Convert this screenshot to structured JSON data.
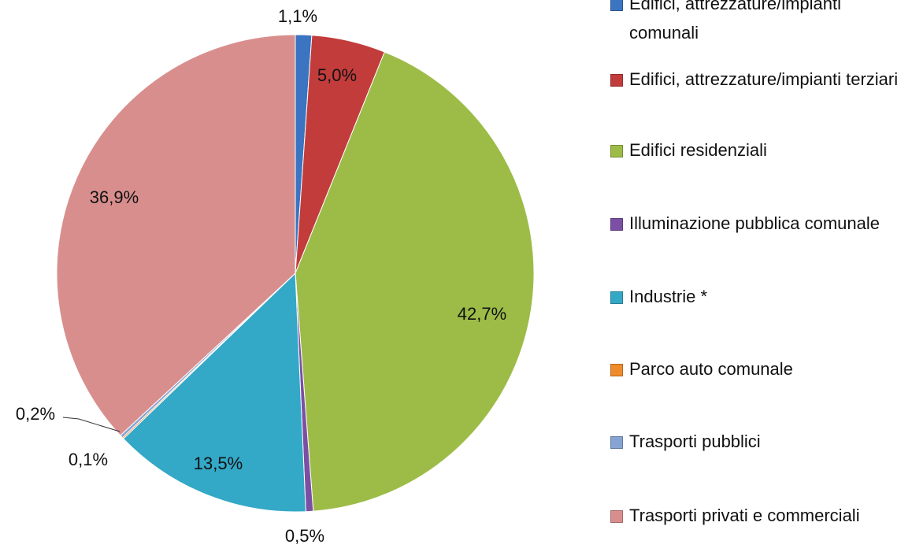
{
  "chart_data": {
    "type": "pie",
    "categories": [
      "Edifici, attrezzature/impianti comunali",
      "Edifici, attrezzature/impianti terziari",
      "Edifici residenziali",
      "Illuminazione pubblica comunale",
      "Industrie *",
      "Parco auto comunale",
      "Trasporti pubblici",
      "Trasporti privati e commerciali"
    ],
    "values": [
      1.1,
      5.0,
      42.7,
      0.5,
      13.5,
      0.1,
      0.2,
      36.9
    ],
    "value_labels": [
      "1,1%",
      "5,0%",
      "42,7%",
      "0,5%",
      "13,5%",
      "0,1%",
      "0,2%",
      "36,9%"
    ],
    "colors": [
      "#3b74c1",
      "#c23c3c",
      "#9cbc47",
      "#7b4fa4",
      "#33a8c7",
      "#ef8b2b",
      "#86a3d3",
      "#d98e8e"
    ],
    "legend": "right"
  }
}
